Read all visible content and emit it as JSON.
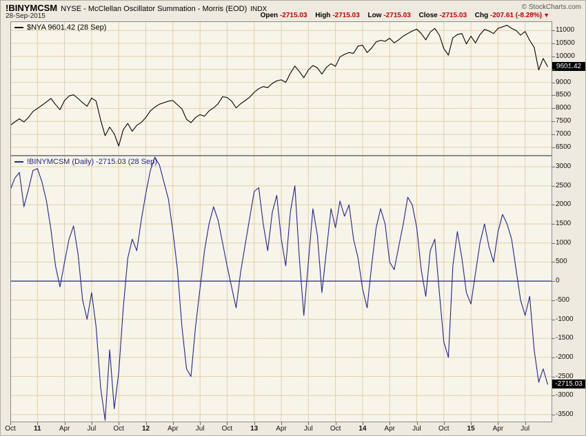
{
  "header": {
    "symbol": "!BINYMCSM",
    "title": "NYSE - McClellan Oscillator Summation - Morris (EOD)",
    "exchange": "INDX",
    "date": "28-Sep-2015",
    "copyright": "© StockCharts.com",
    "quote": {
      "fields": [
        {
          "label": "Open",
          "value": "-2715.03"
        },
        {
          "label": "High",
          "value": "-2715.03"
        },
        {
          "label": "Low",
          "value": "-2715.03"
        },
        {
          "label": "Close",
          "value": "-2715.03"
        },
        {
          "label": "Chg",
          "value": "-207.61 (-8.28%)"
        }
      ],
      "direction_icon": "▼"
    }
  },
  "colors": {
    "background": "#eeeadf",
    "panel_background": "#f7f4e9",
    "grid": "#e3cfab",
    "border": "#8a8a8a",
    "negative": "#cc0000",
    "zero_line": "#22229a",
    "label_box_bg": "#000000",
    "label_box_text": "#ffffff"
  },
  "x_axis": {
    "start": "Oct 2010",
    "end": "Sep 2015",
    "total_months": 60,
    "labels": [
      {
        "text": "Oct",
        "month": 0,
        "bold": false
      },
      {
        "text": "11",
        "month": 3,
        "bold": true
      },
      {
        "text": "Apr",
        "month": 6,
        "bold": false
      },
      {
        "text": "Jul",
        "month": 9,
        "bold": false
      },
      {
        "text": "Oct",
        "month": 12,
        "bold": false
      },
      {
        "text": "12",
        "month": 15,
        "bold": true
      },
      {
        "text": "Apr",
        "month": 18,
        "bold": false
      },
      {
        "text": "Jul",
        "month": 21,
        "bold": false
      },
      {
        "text": "Oct",
        "month": 24,
        "bold": false
      },
      {
        "text": "13",
        "month": 27,
        "bold": true
      },
      {
        "text": "Apr",
        "month": 30,
        "bold": false
      },
      {
        "text": "Jul",
        "month": 33,
        "bold": false
      },
      {
        "text": "Oct",
        "month": 36,
        "bold": false
      },
      {
        "text": "14",
        "month": 39,
        "bold": true
      },
      {
        "text": "Apr",
        "month": 42,
        "bold": false
      },
      {
        "text": "Jul",
        "month": 45,
        "bold": false
      },
      {
        "text": "Oct",
        "month": 48,
        "bold": false
      },
      {
        "text": "15",
        "month": 51,
        "bold": true
      },
      {
        "text": "Apr",
        "month": 54,
        "bold": false
      },
      {
        "text": "Jul",
        "month": 57,
        "bold": false
      }
    ]
  },
  "chart_data": [
    {
      "type": "line",
      "name": "nya",
      "legend": "$NYA 9601.42 (28 Sep)",
      "line_color": "#000000",
      "last_value": 9601.42,
      "last_label": "9601.42",
      "y_domain": [
        6180,
        11350
      ],
      "y_ticks": [
        6500,
        7000,
        7500,
        8000,
        8500,
        9000,
        9500,
        10000,
        10500,
        11000
      ],
      "points_per_month": 2,
      "values": [
        7350,
        7480,
        7600,
        7480,
        7650,
        7880,
        8000,
        8120,
        8250,
        8380,
        8150,
        7950,
        8300,
        8480,
        8520,
        8380,
        8220,
        8080,
        8400,
        8280,
        7550,
        6950,
        7280,
        7020,
        6550,
        7180,
        7420,
        7120,
        7350,
        7460,
        7650,
        7900,
        8050,
        8160,
        8220,
        8280,
        8300,
        8140,
        7980,
        7580,
        7450,
        7650,
        7760,
        7700,
        7900,
        8020,
        8180,
        8450,
        8420,
        8280,
        8020,
        8180,
        8300,
        8430,
        8620,
        8760,
        8840,
        8800,
        8960,
        9060,
        9100,
        9000,
        9350,
        9630,
        9420,
        9180,
        9480,
        9650,
        9560,
        9320,
        9580,
        9720,
        9620,
        9980,
        10080,
        10150,
        10120,
        10400,
        10430,
        10150,
        10320,
        10560,
        10620,
        10580,
        10700,
        10520,
        10640,
        10780,
        10880,
        10980,
        11050,
        10880,
        10640,
        10940,
        11080,
        10820,
        10300,
        10050,
        10720,
        10840,
        10880,
        10480,
        10780,
        10520,
        10840,
        11040,
        10980,
        10880,
        11080,
        11140,
        11200,
        11080,
        11000,
        10820,
        10960,
        10620,
        10350,
        9480,
        9920,
        9601.42
      ]
    },
    {
      "type": "line",
      "name": "binymcsm",
      "legend": "!BINYMCSM (Daily) -2715.03 (28 Sep)",
      "line_color": "#22229a",
      "last_value": -2715.03,
      "last_label": "-2715.03",
      "y_domain": [
        -3700,
        3290
      ],
      "y_ticks": [
        -3500,
        -3000,
        -2500,
        -2000,
        -1500,
        -1000,
        -500,
        0,
        500,
        1000,
        1500,
        2000,
        2500,
        3000
      ],
      "zero_line": true,
      "points_per_month": 2,
      "values": [
        2400,
        2700,
        2850,
        1950,
        2400,
        2900,
        2950,
        2600,
        2100,
        1350,
        400,
        -150,
        500,
        1100,
        1450,
        700,
        -500,
        -1000,
        -300,
        -1200,
        -2800,
        -3650,
        -1800,
        -3350,
        -2400,
        -700,
        600,
        1100,
        800,
        1600,
        2300,
        2900,
        3250,
        3050,
        2600,
        2150,
        1300,
        300,
        -1200,
        -2300,
        -2500,
        -1200,
        -200,
        800,
        1500,
        1950,
        1600,
        1000,
        400,
        -150,
        -700,
        250,
        950,
        1650,
        2350,
        2450,
        1500,
        800,
        1800,
        2250,
        1100,
        400,
        1800,
        2500,
        600,
        -900,
        500,
        1900,
        1200,
        -300,
        800,
        1900,
        1400,
        2100,
        1700,
        2000,
        1100,
        600,
        -200,
        -700,
        400,
        1400,
        1900,
        1500,
        500,
        300,
        900,
        1500,
        2200,
        2000,
        1400,
        300,
        -400,
        800,
        1100,
        -300,
        -1600,
        -2000,
        400,
        1300,
        600,
        -300,
        -600,
        200,
        1000,
        1500,
        900,
        500,
        1300,
        1750,
        1500,
        1100,
        300,
        -500,
        -900,
        -400,
        -1800,
        -2650,
        -2300,
        -2715.03
      ]
    }
  ]
}
